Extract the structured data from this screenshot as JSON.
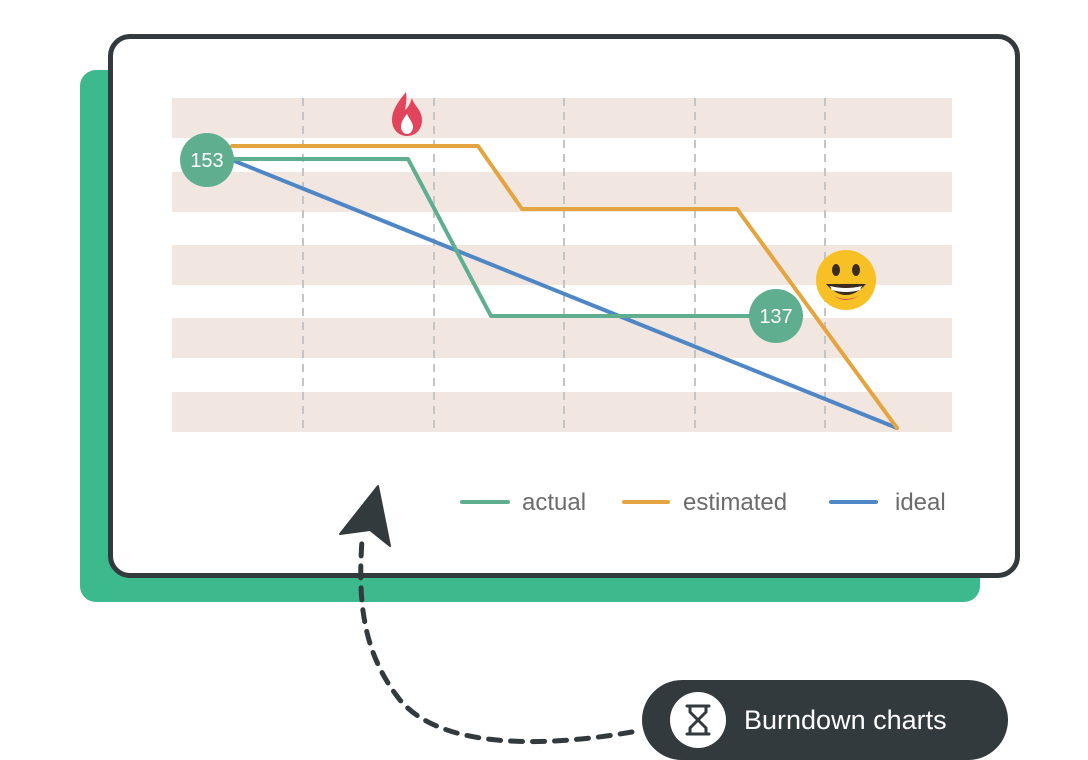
{
  "chart_data": {
    "type": "line",
    "x": [
      0,
      1,
      2,
      3,
      4,
      5,
      6,
      7,
      8,
      9,
      10,
      11,
      12
    ],
    "ylim": [
      130,
      155
    ],
    "series": [
      {
        "name": "actual",
        "color": "#5fae90",
        "values": [
          153,
          153,
          153,
          153,
          153,
          153,
          153,
          137,
          137,
          137,
          137,
          137,
          137
        ]
      },
      {
        "name": "estimated",
        "color": "#e4a43f",
        "values": [
          154,
          154,
          154,
          154,
          154,
          154,
          154,
          146,
          146,
          146,
          146,
          146,
          130
        ]
      },
      {
        "name": "ideal",
        "color": "#4f86c6",
        "values": [
          153,
          null,
          null,
          null,
          null,
          null,
          null,
          null,
          null,
          null,
          null,
          null,
          130
        ]
      }
    ],
    "annotations": [
      {
        "series": "actual",
        "label": "153"
      },
      {
        "series": "actual",
        "label": "137"
      }
    ],
    "grid": "banded rows with dashed vertical lines",
    "legend_position": "bottom-right"
  },
  "legend": {
    "actual": "actual",
    "estimated": "estimated",
    "ideal": "ideal"
  },
  "badges": {
    "start": "153",
    "current": "137"
  },
  "icons": {
    "fire": "fire-icon",
    "smiley": "grinning-face-icon",
    "cursor": "cursor-arrow-icon",
    "hourglass": "hourglass-icon"
  },
  "colors": {
    "accent_green": "#3cba8e",
    "dark": "#333a3d",
    "band": "#f2e6e1"
  },
  "feature": {
    "label": "Burndown charts"
  }
}
